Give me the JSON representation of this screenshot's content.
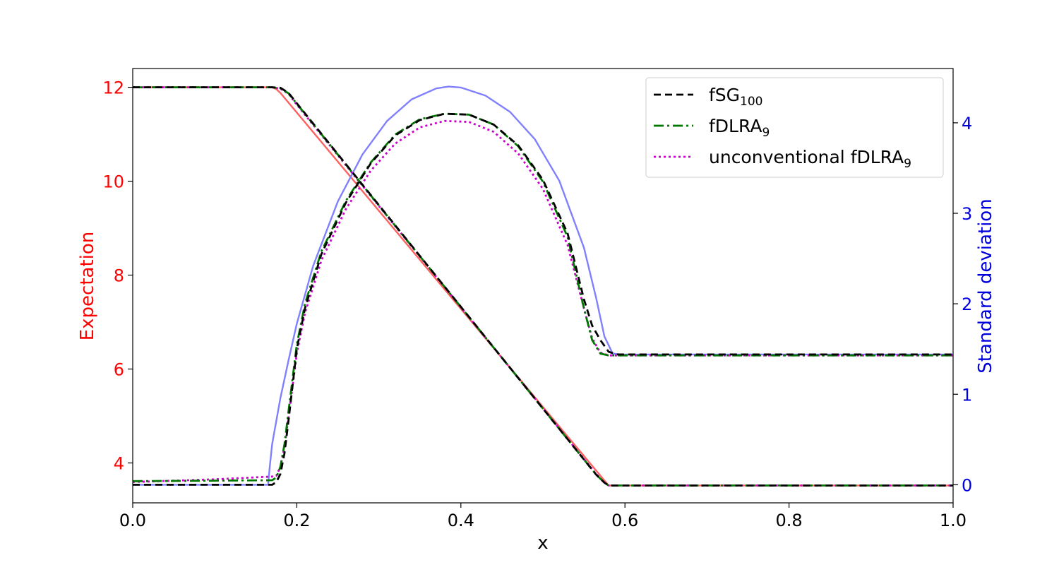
{
  "chart_data": {
    "type": "line",
    "xlabel": "x",
    "ylabel_left": "Expectation",
    "ylabel_right": "Standard deviation",
    "xlim": [
      0.0,
      1.0
    ],
    "ylim_left": [
      3.15,
      12.4
    ],
    "ylim_right": [
      -0.2,
      4.6
    ],
    "x_ticks": [
      0.0,
      0.2,
      0.4,
      0.6,
      0.8,
      1.0
    ],
    "x_tick_labels": [
      "0.0",
      "0.2",
      "0.4",
      "0.6",
      "0.8",
      "1.0"
    ],
    "left_ticks": [
      4,
      6,
      8,
      10,
      12
    ],
    "left_tick_labels": [
      "4",
      "6",
      "8",
      "10",
      "12"
    ],
    "right_ticks": [
      0,
      1,
      2,
      3,
      4
    ],
    "right_tick_labels": [
      "0",
      "1",
      "2",
      "3",
      "4"
    ],
    "grid": false,
    "legend_position": "top-right",
    "colors": {
      "left_axis": "#ff0000",
      "right_axis": "#0000dd",
      "reference_expectation": "#ff6060",
      "reference_std": "#8080ff",
      "fSG": "#000000",
      "fDLRA": "#007700",
      "unconventional": "#cc00cc"
    },
    "legend": [
      {
        "key": "fSG",
        "label": "fSG",
        "sub": "100",
        "dash": "10,6"
      },
      {
        "key": "fDLRA",
        "label": "fDLRA",
        "sub": "9",
        "dash": "14,5,3,5"
      },
      {
        "key": "unconventional",
        "label": "unconventional fDLRA",
        "sub": "9",
        "dash": "3,4"
      }
    ],
    "series": [
      {
        "key": "reference_expectation",
        "axis": "left",
        "dash": "",
        "points": [
          [
            0.0,
            12.0
          ],
          [
            0.17,
            12.0
          ],
          [
            0.175,
            11.96
          ],
          [
            0.18,
            11.88
          ],
          [
            0.58,
            3.52
          ],
          [
            1.0,
            3.52
          ]
        ]
      },
      {
        "key": "fSG",
        "axis": "left",
        "dash": "10,6",
        "points": [
          [
            0.0,
            12.0
          ],
          [
            0.17,
            12.0
          ],
          [
            0.18,
            11.99
          ],
          [
            0.19,
            11.88
          ],
          [
            0.2,
            11.66
          ],
          [
            0.565,
            3.75
          ],
          [
            0.575,
            3.58
          ],
          [
            0.58,
            3.52
          ],
          [
            1.0,
            3.52
          ]
        ]
      },
      {
        "key": "fDLRA",
        "axis": "left",
        "dash": "14,5,3,5",
        "points": [
          [
            0.0,
            12.0
          ],
          [
            0.17,
            12.0
          ],
          [
            0.18,
            11.98
          ],
          [
            0.19,
            11.87
          ],
          [
            0.2,
            11.65
          ],
          [
            0.565,
            3.75
          ],
          [
            0.575,
            3.58
          ],
          [
            0.58,
            3.52
          ],
          [
            1.0,
            3.52
          ]
        ]
      },
      {
        "key": "unconventional",
        "axis": "left",
        "dash": "3,4",
        "points": [
          [
            0.0,
            12.0
          ],
          [
            0.17,
            12.0
          ],
          [
            0.18,
            11.97
          ],
          [
            0.19,
            11.86
          ],
          [
            0.2,
            11.63
          ],
          [
            0.565,
            3.76
          ],
          [
            0.575,
            3.58
          ],
          [
            0.58,
            3.52
          ],
          [
            1.0,
            3.52
          ]
        ]
      },
      {
        "key": "reference_std",
        "axis": "right",
        "dash": "",
        "points": [
          [
            0.0,
            0.0
          ],
          [
            0.165,
            0.0
          ],
          [
            0.167,
            0.2
          ],
          [
            0.17,
            0.45
          ],
          [
            0.18,
            0.96
          ],
          [
            0.19,
            1.38
          ],
          [
            0.2,
            1.78
          ],
          [
            0.22,
            2.42
          ],
          [
            0.25,
            3.13
          ],
          [
            0.28,
            3.65
          ],
          [
            0.31,
            4.02
          ],
          [
            0.34,
            4.26
          ],
          [
            0.37,
            4.38
          ],
          [
            0.385,
            4.4
          ],
          [
            0.4,
            4.39
          ],
          [
            0.43,
            4.3
          ],
          [
            0.46,
            4.12
          ],
          [
            0.49,
            3.82
          ],
          [
            0.52,
            3.36
          ],
          [
            0.55,
            2.62
          ],
          [
            0.565,
            2.06
          ],
          [
            0.575,
            1.64
          ],
          [
            0.585,
            1.45
          ],
          [
            0.595,
            1.44
          ],
          [
            1.0,
            1.44
          ]
        ]
      },
      {
        "key": "fSG",
        "axis": "right",
        "dash": "10,6",
        "points": [
          [
            0.0,
            0.0
          ],
          [
            0.17,
            0.0
          ],
          [
            0.175,
            0.03
          ],
          [
            0.18,
            0.12
          ],
          [
            0.185,
            0.35
          ],
          [
            0.19,
            0.72
          ],
          [
            0.2,
            1.5
          ],
          [
            0.21,
            1.95
          ],
          [
            0.23,
            2.55
          ],
          [
            0.26,
            3.12
          ],
          [
            0.29,
            3.55
          ],
          [
            0.32,
            3.86
          ],
          [
            0.35,
            4.03
          ],
          [
            0.38,
            4.1
          ],
          [
            0.41,
            4.09
          ],
          [
            0.44,
            3.98
          ],
          [
            0.47,
            3.75
          ],
          [
            0.5,
            3.37
          ],
          [
            0.53,
            2.78
          ],
          [
            0.55,
            2.05
          ],
          [
            0.56,
            1.76
          ],
          [
            0.57,
            1.6
          ],
          [
            0.58,
            1.47
          ],
          [
            0.59,
            1.44
          ],
          [
            1.0,
            1.44
          ]
        ]
      },
      {
        "key": "fDLRA",
        "axis": "right",
        "dash": "14,5,3,5",
        "points": [
          [
            0.0,
            0.04
          ],
          [
            0.17,
            0.05
          ],
          [
            0.175,
            0.08
          ],
          [
            0.18,
            0.2
          ],
          [
            0.185,
            0.45
          ],
          [
            0.19,
            0.82
          ],
          [
            0.2,
            1.55
          ],
          [
            0.21,
            2.0
          ],
          [
            0.23,
            2.58
          ],
          [
            0.26,
            3.14
          ],
          [
            0.29,
            3.56
          ],
          [
            0.32,
            3.87
          ],
          [
            0.35,
            4.04
          ],
          [
            0.38,
            4.1
          ],
          [
            0.41,
            4.09
          ],
          [
            0.44,
            3.98
          ],
          [
            0.47,
            3.74
          ],
          [
            0.5,
            3.35
          ],
          [
            0.53,
            2.74
          ],
          [
            0.55,
            1.95
          ],
          [
            0.56,
            1.6
          ],
          [
            0.57,
            1.45
          ],
          [
            0.58,
            1.43
          ],
          [
            1.0,
            1.43
          ]
        ]
      },
      {
        "key": "unconventional",
        "axis": "right",
        "dash": "3,4",
        "points": [
          [
            0.0,
            0.03
          ],
          [
            0.1,
            0.06
          ],
          [
            0.17,
            0.09
          ],
          [
            0.175,
            0.1
          ],
          [
            0.18,
            0.2
          ],
          [
            0.185,
            0.42
          ],
          [
            0.19,
            0.75
          ],
          [
            0.2,
            1.45
          ],
          [
            0.21,
            1.9
          ],
          [
            0.23,
            2.48
          ],
          [
            0.26,
            3.05
          ],
          [
            0.29,
            3.47
          ],
          [
            0.32,
            3.77
          ],
          [
            0.35,
            3.95
          ],
          [
            0.38,
            4.02
          ],
          [
            0.41,
            4.01
          ],
          [
            0.44,
            3.9
          ],
          [
            0.47,
            3.66
          ],
          [
            0.5,
            3.27
          ],
          [
            0.53,
            2.65
          ],
          [
            0.55,
            1.95
          ],
          [
            0.56,
            1.62
          ],
          [
            0.57,
            1.46
          ],
          [
            0.58,
            1.43
          ],
          [
            1.0,
            1.43
          ]
        ]
      }
    ]
  }
}
